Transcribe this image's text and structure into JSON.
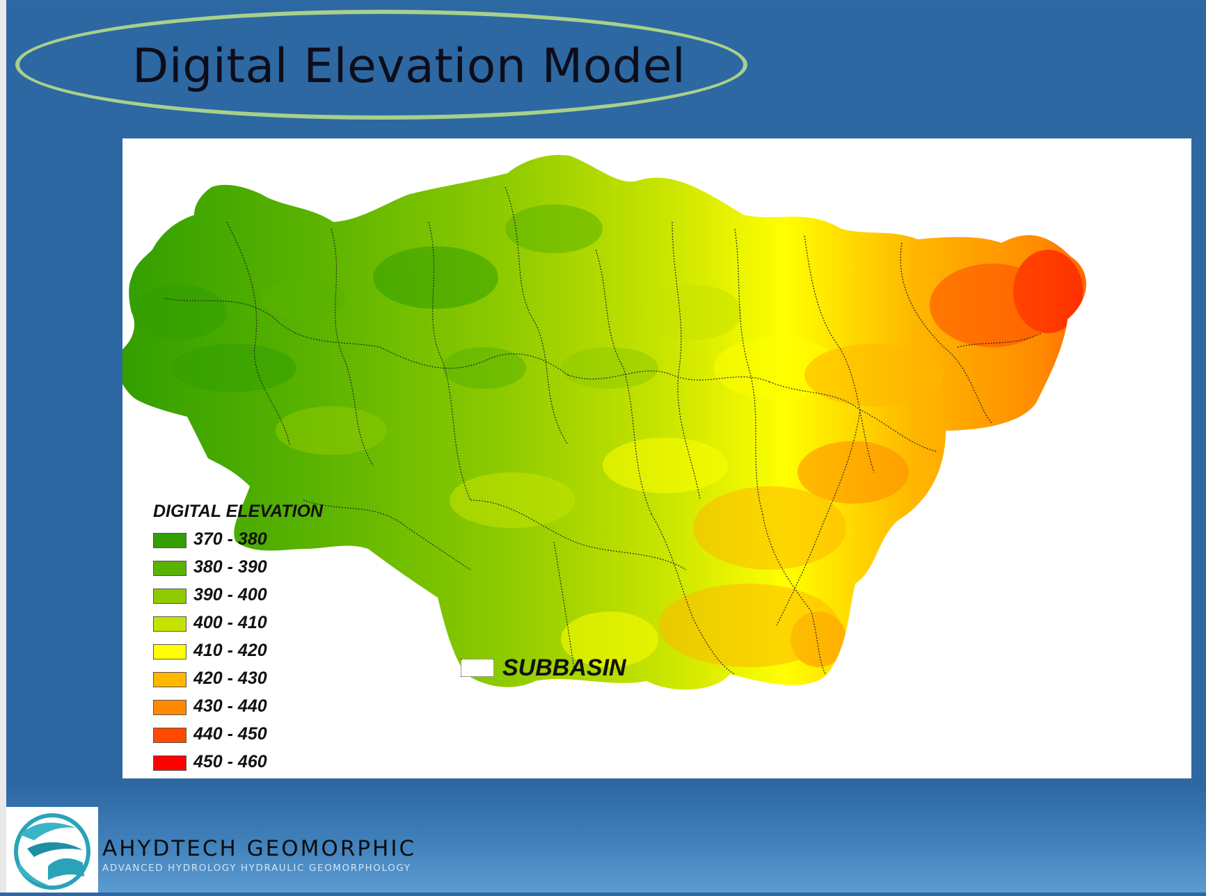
{
  "slide": {
    "title": "Digital Elevation Model"
  },
  "map": {
    "legend": {
      "title": "DIGITAL ELEVATION",
      "classes": [
        {
          "label": "370 - 380",
          "color": "#339f00"
        },
        {
          "label": "380 - 390",
          "color": "#5ab300"
        },
        {
          "label": "390 - 400",
          "color": "#8fcb00"
        },
        {
          "label": "400 - 410",
          "color": "#c6e300"
        },
        {
          "label": "410 - 420",
          "color": "#ffff00"
        },
        {
          "label": "420 - 430",
          "color": "#ffb700"
        },
        {
          "label": "430 - 440",
          "color": "#ff8a00"
        },
        {
          "label": "440 - 450",
          "color": "#ff4a00"
        },
        {
          "label": "450 - 460",
          "color": "#ff0000"
        }
      ]
    },
    "subbasin_label": "SUBBASIN"
  },
  "brand": {
    "name": "AHYDTECH GEOMORPHIC",
    "tagline": "ADVANCED HYDROLOGY HYDRAULIC GEOMORPHOLOGY"
  }
}
